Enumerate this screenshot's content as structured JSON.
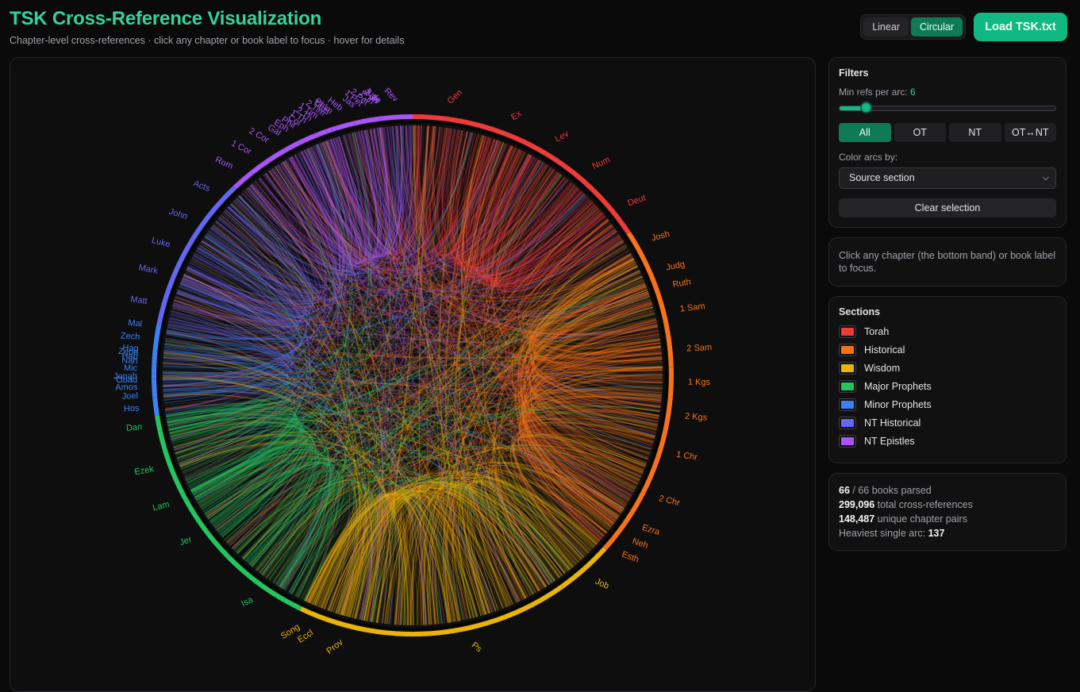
{
  "header": {
    "title": "TSK Cross-Reference Visualization",
    "subtitle": "Chapter-level cross-references · click any chapter or book label to focus · hover for details",
    "view_linear": "Linear",
    "view_circular": "Circular",
    "load_button": "Load TSK.txt"
  },
  "filters": {
    "title": "Filters",
    "min_refs_label": "Min refs per arc:",
    "min_refs_value": "6",
    "slider_fraction": 0.12,
    "scope_buttons": [
      "All",
      "OT",
      "NT",
      "OT↔NT"
    ],
    "color_label": "Color arcs by:",
    "color_select_value": "Source section",
    "clear_button": "Clear selection"
  },
  "hint": {
    "text": "Click any chapter (the bottom band) or book label to focus."
  },
  "sections": {
    "title": "Sections",
    "items": [
      {
        "label": "Torah",
        "color": "#ef3a3a"
      },
      {
        "label": "Historical",
        "color": "#f97316"
      },
      {
        "label": "Wisdom",
        "color": "#eab308"
      },
      {
        "label": "Major Prophets",
        "color": "#22c55e"
      },
      {
        "label": "Minor Prophets",
        "color": "#3b82f6"
      },
      {
        "label": "NT Historical",
        "color": "#6366f1"
      },
      {
        "label": "NT Epistles",
        "color": "#a855f7"
      }
    ]
  },
  "stats": {
    "books_parsed": "66",
    "books_parsed_suffix": "/ 66 books parsed",
    "total_refs": "299,096",
    "total_refs_suffix": "total cross-references",
    "unique_pairs": "148,487",
    "unique_pairs_suffix": "unique chapter pairs",
    "heaviest_prefix": "Heaviest single arc:",
    "heaviest_value": "137"
  },
  "chart_data": {
    "type": "chord",
    "section_colors": {
      "Torah": "#ef3a3a",
      "Historical": "#f97316",
      "Wisdom": "#eab308",
      "Major Prophets": "#22c55e",
      "Minor Prophets": "#3b82f6",
      "NT Historical": "#6366f1",
      "NT Epistles": "#a855f7"
    },
    "books": [
      {
        "label": "Gen",
        "section": "Torah",
        "chapters": 50
      },
      {
        "label": "Ex",
        "section": "Torah",
        "chapters": 40
      },
      {
        "label": "Lev",
        "section": "Torah",
        "chapters": 27
      },
      {
        "label": "Num",
        "section": "Torah",
        "chapters": 36
      },
      {
        "label": "Deut",
        "section": "Torah",
        "chapters": 34
      },
      {
        "label": "Josh",
        "section": "Historical",
        "chapters": 24
      },
      {
        "label": "Judg",
        "section": "Historical",
        "chapters": 21
      },
      {
        "label": "Ruth",
        "section": "Historical",
        "chapters": 4
      },
      {
        "label": "1 Sam",
        "section": "Historical",
        "chapters": 31
      },
      {
        "label": "2 Sam",
        "section": "Historical",
        "chapters": 24
      },
      {
        "label": "1 Kgs",
        "section": "Historical",
        "chapters": 22
      },
      {
        "label": "2 Kgs",
        "section": "Historical",
        "chapters": 25
      },
      {
        "label": "1 Chr",
        "section": "Historical",
        "chapters": 29
      },
      {
        "label": "2 Chr",
        "section": "Historical",
        "chapters": 36
      },
      {
        "label": "Ezra",
        "section": "Historical",
        "chapters": 10
      },
      {
        "label": "Neh",
        "section": "Historical",
        "chapters": 13
      },
      {
        "label": "Esth",
        "section": "Historical",
        "chapters": 10
      },
      {
        "label": "Job",
        "section": "Wisdom",
        "chapters": 42
      },
      {
        "label": "Ps",
        "section": "Wisdom",
        "chapters": 150
      },
      {
        "label": "Prov",
        "section": "Wisdom",
        "chapters": 31
      },
      {
        "label": "Eccl",
        "section": "Wisdom",
        "chapters": 12
      },
      {
        "label": "Song",
        "section": "Wisdom",
        "chapters": 8
      },
      {
        "label": "Isa",
        "section": "Major Prophets",
        "chapters": 66
      },
      {
        "label": "Jer",
        "section": "Major Prophets",
        "chapters": 52
      },
      {
        "label": "Lam",
        "section": "Major Prophets",
        "chapters": 5
      },
      {
        "label": "Ezek",
        "section": "Major Prophets",
        "chapters": 48
      },
      {
        "label": "Dan",
        "section": "Major Prophets",
        "chapters": 12
      },
      {
        "label": "Hos",
        "section": "Minor Prophets",
        "chapters": 14
      },
      {
        "label": "Joel",
        "section": "Minor Prophets",
        "chapters": 3
      },
      {
        "label": "Amos",
        "section": "Minor Prophets",
        "chapters": 9
      },
      {
        "label": "Obad",
        "section": "Minor Prophets",
        "chapters": 1
      },
      {
        "label": "Jonah",
        "section": "Minor Prophets",
        "chapters": 4
      },
      {
        "label": "Mic",
        "section": "Minor Prophets",
        "chapters": 7
      },
      {
        "label": "Nah",
        "section": "Minor Prophets",
        "chapters": 3
      },
      {
        "label": "Hab",
        "section": "Minor Prophets",
        "chapters": 3
      },
      {
        "label": "Zeph",
        "section": "Minor Prophets",
        "chapters": 3
      },
      {
        "label": "Hag",
        "section": "Minor Prophets",
        "chapters": 2
      },
      {
        "label": "Zech",
        "section": "Minor Prophets",
        "chapters": 14
      },
      {
        "label": "Mal",
        "section": "Minor Prophets",
        "chapters": 4
      },
      {
        "label": "Matt",
        "section": "NT Historical",
        "chapters": 28
      },
      {
        "label": "Mark",
        "section": "NT Historical",
        "chapters": 16
      },
      {
        "label": "Luke",
        "section": "NT Historical",
        "chapters": 24
      },
      {
        "label": "John",
        "section": "NT Historical",
        "chapters": 21
      },
      {
        "label": "Acts",
        "section": "NT Historical",
        "chapters": 28
      },
      {
        "label": "Rom",
        "section": "NT Epistles",
        "chapters": 16
      },
      {
        "label": "1 Cor",
        "section": "NT Epistles",
        "chapters": 16
      },
      {
        "label": "2 Cor",
        "section": "NT Epistles",
        "chapters": 13
      },
      {
        "label": "Gal",
        "section": "NT Epistles",
        "chapters": 6
      },
      {
        "label": "Eph",
        "section": "NT Epistles",
        "chapters": 6
      },
      {
        "label": "Phil",
        "section": "NT Epistles",
        "chapters": 4
      },
      {
        "label": "Col",
        "section": "NT Epistles",
        "chapters": 4
      },
      {
        "label": "1 Th",
        "section": "NT Epistles",
        "chapters": 5
      },
      {
        "label": "2 Th",
        "section": "NT Epistles",
        "chapters": 3
      },
      {
        "label": "1 Tim",
        "section": "NT Epistles",
        "chapters": 6
      },
      {
        "label": "2 Tim",
        "section": "NT Epistles",
        "chapters": 4
      },
      {
        "label": "Titus",
        "section": "NT Epistles",
        "chapters": 3
      },
      {
        "label": "Phlm",
        "section": "NT Epistles",
        "chapters": 1
      },
      {
        "label": "Heb",
        "section": "NT Epistles",
        "chapters": 13
      },
      {
        "label": "Jas",
        "section": "NT Epistles",
        "chapters": 5
      },
      {
        "label": "1 Pet",
        "section": "NT Epistles",
        "chapters": 5
      },
      {
        "label": "2 Pet",
        "section": "NT Epistles",
        "chapters": 3
      },
      {
        "label": "1 Jn",
        "section": "NT Epistles",
        "chapters": 5
      },
      {
        "label": "2 Jn",
        "section": "NT Epistles",
        "chapters": 1
      },
      {
        "label": "3 Jn",
        "section": "NT Epistles",
        "chapters": 1
      },
      {
        "label": "Jude",
        "section": "NT Epistles",
        "chapters": 1
      },
      {
        "label": "Rev",
        "section": "NT Epistles",
        "chapters": 22
      }
    ]
  }
}
